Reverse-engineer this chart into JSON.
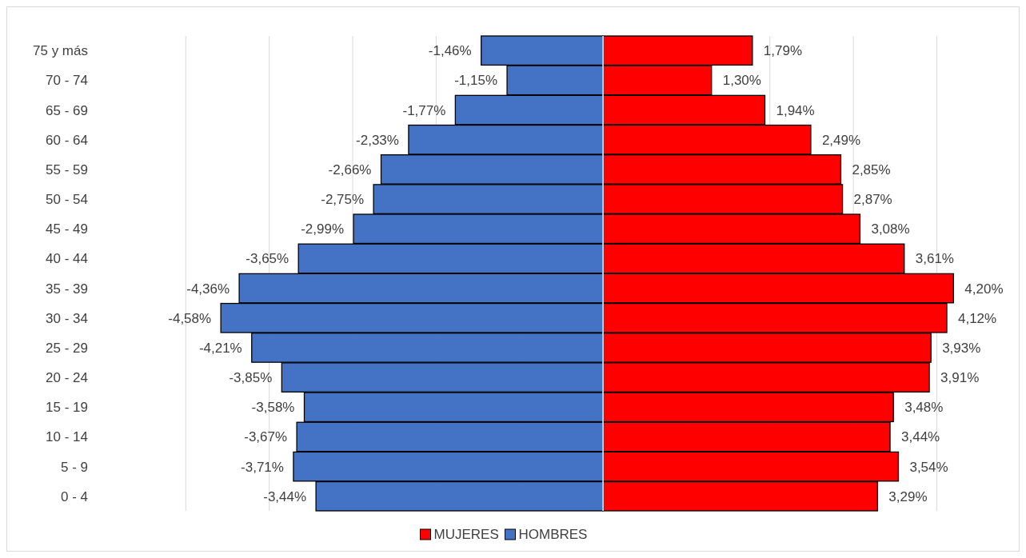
{
  "chart_data": {
    "type": "bar",
    "orientation": "horizontal",
    "stacked": true,
    "categories": [
      "75 y más",
      "70 - 74",
      "65 - 69",
      "60 - 64",
      "55 - 59",
      "50 - 54",
      "45 - 49",
      "40 - 44",
      "35 - 39",
      "30 - 34",
      "25 - 29",
      "20 - 24",
      "15 - 19",
      "10 - 14",
      "5 - 9",
      "0 - 4"
    ],
    "series": [
      {
        "name": "MUJERES",
        "color": "#ff0000",
        "values": [
          1.79,
          1.3,
          1.94,
          2.49,
          2.85,
          2.87,
          3.08,
          3.61,
          4.2,
          4.12,
          3.93,
          3.91,
          3.48,
          3.44,
          3.54,
          3.29
        ],
        "value_labels": [
          "1,79%",
          "1,30%",
          "1,94%",
          "2,49%",
          "2,85%",
          "2,87%",
          "3,08%",
          "3,61%",
          "4,20%",
          "4,12%",
          "3,93%",
          "3,91%",
          "3,48%",
          "3,44%",
          "3,54%",
          "3,29%"
        ]
      },
      {
        "name": "HOMBRES",
        "color": "#4472c4",
        "values": [
          -1.46,
          -1.15,
          -1.77,
          -2.33,
          -2.66,
          -2.75,
          -2.99,
          -3.65,
          -4.36,
          -4.58,
          -4.21,
          -3.85,
          -3.58,
          -3.67,
          -3.71,
          -3.44
        ],
        "value_labels": [
          "-1,46%",
          "-1,15%",
          "-1,77%",
          "-2,33%",
          "-2,66%",
          "-2,75%",
          "-2,99%",
          "-3,65%",
          "-4,36%",
          "-4,58%",
          "-4,21%",
          "-3,85%",
          "-3,58%",
          "-3,67%",
          "-3,71%",
          "-3,44%"
        ]
      }
    ],
    "grid": "x",
    "legend": "bottom",
    "tick_labels": "y"
  }
}
